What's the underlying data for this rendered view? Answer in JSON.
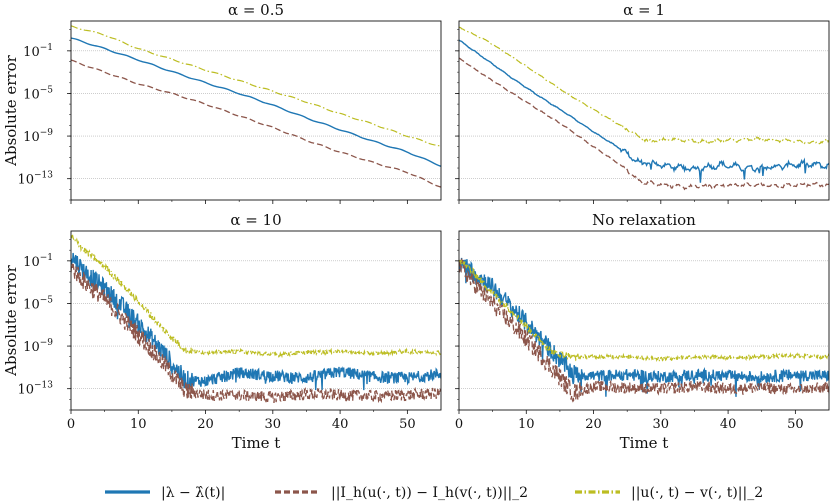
{
  "chart_data": [
    {
      "type": "line",
      "title": "α = 0.5",
      "xlabel": "",
      "ylabel": "Absolute error",
      "xlim": [
        0,
        55
      ],
      "ylim_log10": [
        -15,
        1.8
      ],
      "yscale": "log",
      "grid": "horizontal",
      "series": [
        {
          "name": "|λ − λ̂(t)|",
          "color": "#1f77b4",
          "style": "solid",
          "x": [
            0,
            5,
            10,
            15,
            20,
            25,
            30,
            35,
            40,
            45,
            50,
            55
          ],
          "log10_y": [
            0.2,
            -0.8,
            -1.85,
            -2.95,
            -4.0,
            -5.0,
            -6.1,
            -7.3,
            -8.4,
            -9.5,
            -10.5,
            -11.8
          ]
        },
        {
          "name": "||I_h(u(·,t)) − I_h(v(·,t))||_2",
          "color": "#8c564b",
          "style": "dashed",
          "x": [
            0,
            5,
            10,
            15,
            20,
            25,
            30,
            35,
            40,
            45,
            50,
            55
          ],
          "log10_y": [
            -1.9,
            -3.0,
            -4.1,
            -5.0,
            -6.0,
            -7.1,
            -8.2,
            -9.4,
            -10.5,
            -11.5,
            -12.4,
            -13.8
          ]
        },
        {
          "name": "||u(·,t) − v(·,t)||_2",
          "color": "#bcbd22",
          "style": "dashdot",
          "x": [
            0,
            5,
            10,
            15,
            20,
            25,
            30,
            35,
            40,
            45,
            50,
            55
          ],
          "log10_y": [
            1.3,
            0.5,
            -0.8,
            -1.8,
            -2.8,
            -3.8,
            -4.8,
            -5.8,
            -6.9,
            -7.9,
            -9.0,
            -10.0
          ]
        }
      ]
    },
    {
      "type": "line",
      "title": "α = 1",
      "xlabel": "",
      "ylabel": "",
      "xlim": [
        0,
        55
      ],
      "ylim_log10": [
        -15,
        1.8
      ],
      "yscale": "log",
      "grid": "horizontal",
      "series": [
        {
          "name": "|λ − λ̂(t)|",
          "color": "#1f77b4",
          "style": "solid",
          "x": [
            0,
            4,
            8,
            12,
            16,
            20,
            24,
            27,
            28,
            31,
            35,
            39,
            43,
            47,
            51,
            55
          ],
          "log10_y": [
            0.0,
            -1.8,
            -3.6,
            -5.3,
            -6.9,
            -8.6,
            -10.2,
            -11.6,
            -11.5,
            -11.8,
            -12.1,
            -11.7,
            -12.0,
            -11.9,
            -11.6,
            -11.8
          ]
        },
        {
          "name": "||I_h(u(·,t)) − I_h(v(·,t))||_2",
          "color": "#8c564b",
          "style": "dashed",
          "x": [
            0,
            4,
            8,
            12,
            16,
            20,
            24,
            27,
            30,
            33,
            36,
            40,
            44,
            48,
            52,
            55
          ],
          "log10_y": [
            -1.7,
            -3.4,
            -5.0,
            -6.6,
            -8.2,
            -10.0,
            -11.7,
            -13.3,
            -13.5,
            -13.8,
            -13.7,
            -13.6,
            -13.6,
            -13.7,
            -13.5,
            -13.6
          ]
        },
        {
          "name": "||u(·,t) − v(·,t)||_2",
          "color": "#bcbd22",
          "style": "dashdot",
          "x": [
            0,
            4,
            8,
            12,
            16,
            20,
            24,
            28,
            32,
            36,
            40,
            44,
            48,
            52,
            55
          ],
          "log10_y": [
            1.2,
            0.0,
            -1.6,
            -3.3,
            -5.0,
            -6.5,
            -8.0,
            -9.5,
            -9.3,
            -9.5,
            -9.4,
            -9.3,
            -9.4,
            -9.6,
            -9.5
          ]
        }
      ]
    },
    {
      "type": "line",
      "title": "α = 10",
      "xlabel": "Time t",
      "ylabel": "Absolute error",
      "xlim": [
        0,
        55
      ],
      "ylim_log10": [
        -15,
        1.8
      ],
      "yscale": "log",
      "grid": "horizontal",
      "series": [
        {
          "name": "|λ − λ̂(t)|",
          "color": "#1f77b4",
          "style": "solid",
          "x": [
            0,
            2,
            5,
            8,
            11,
            14,
            17,
            20,
            25,
            30,
            35,
            40,
            45,
            50,
            55
          ],
          "log10_y": [
            -0.5,
            -2.0,
            -3.6,
            -5.5,
            -7.6,
            -9.8,
            -12.2,
            -12.3,
            -11.5,
            -11.8,
            -12.0,
            -11.4,
            -11.9,
            -12.0,
            -11.6
          ]
        },
        {
          "name": "||I_h(u(·,t)) − I_h(v(·,t))||_2",
          "color": "#8c564b",
          "style": "dashed",
          "x": [
            0,
            2,
            5,
            8,
            11,
            14,
            17,
            20,
            25,
            30,
            35,
            40,
            45,
            50,
            55
          ],
          "log10_y": [
            -1.5,
            -3.0,
            -4.6,
            -6.6,
            -8.6,
            -10.8,
            -13.2,
            -13.6,
            -13.6,
            -13.8,
            -13.5,
            -13.6,
            -13.7,
            -13.6,
            -13.4
          ]
        },
        {
          "name": "||u(·,t) − v(·,t)||_2",
          "color": "#bcbd22",
          "style": "dashdot",
          "x": [
            0,
            2,
            5,
            8,
            11,
            14,
            17,
            20,
            25,
            30,
            35,
            40,
            45,
            50,
            55
          ],
          "log10_y": [
            1.3,
            0.0,
            -1.5,
            -3.5,
            -5.5,
            -7.6,
            -9.4,
            -9.6,
            -9.5,
            -9.8,
            -9.6,
            -9.5,
            -9.7,
            -9.5,
            -9.6
          ]
        }
      ]
    },
    {
      "type": "line",
      "title": "No relaxation",
      "xlabel": "Time t",
      "ylabel": "",
      "xlim": [
        0,
        55
      ],
      "ylim_log10": [
        -15,
        1.8
      ],
      "yscale": "log",
      "grid": "horizontal",
      "series": [
        {
          "name": "|λ − λ̂(t)|",
          "color": "#1f77b4",
          "style": "solid",
          "x": [
            0,
            2,
            5,
            8,
            11,
            14,
            17,
            20,
            25,
            30,
            35,
            40,
            45,
            50,
            55
          ],
          "log10_y": [
            -1.0,
            -2.0,
            -3.5,
            -5.5,
            -7.5,
            -9.6,
            -11.6,
            -11.8,
            -11.7,
            -11.9,
            -11.7,
            -11.8,
            -11.9,
            -11.7,
            -11.8
          ]
        },
        {
          "name": "||I_h(u(·,t)) − I_h(v(·,t))||_2",
          "color": "#8c564b",
          "style": "dashed",
          "x": [
            0,
            2,
            5,
            8,
            11,
            14,
            17,
            20,
            25,
            30,
            35,
            40,
            45,
            50,
            55
          ],
          "log10_y": [
            -1.3,
            -3.0,
            -5.0,
            -7.0,
            -9.0,
            -11.2,
            -13.4,
            -12.8,
            -12.9,
            -13.0,
            -12.8,
            -13.0,
            -12.9,
            -13.1,
            -12.9
          ]
        },
        {
          "name": "||u(·,t) − v(·,t)||_2",
          "color": "#bcbd22",
          "style": "dashdot",
          "x": [
            0,
            2,
            5,
            8,
            11,
            14,
            17,
            20,
            25,
            30,
            35,
            40,
            45,
            50,
            55
          ],
          "log10_y": [
            -0.8,
            -2.0,
            -4.0,
            -5.8,
            -7.8,
            -9.6,
            -10.0,
            -10.0,
            -10.0,
            -10.2,
            -10.0,
            -10.1,
            -10.0,
            -9.9,
            -10.0
          ]
        }
      ]
    }
  ],
  "axes": {
    "x_ticks": [
      "0",
      "10",
      "20",
      "30",
      "40",
      "50"
    ],
    "x_tick_values": [
      0,
      10,
      20,
      30,
      40,
      50
    ],
    "y_ticks": [
      "10",
      "10",
      "10",
      "10"
    ],
    "y_tick_exps": [
      "−1",
      "−5",
      "−9",
      "−13"
    ],
    "y_tick_log10": [
      -1,
      -5,
      -9,
      -13
    ]
  },
  "legend": {
    "placement": "bottom-center",
    "items": [
      {
        "label": "|λ − λ̂(t)|",
        "color": "#1f77b4",
        "style": "solid"
      },
      {
        "label": "||I_h(u(·, t)) − I_h(v(·, t))||_2",
        "color": "#8c564b",
        "style": "dashed"
      },
      {
        "label": "||u(·, t) − v(·, t)||_2",
        "color": "#bcbd22",
        "style": "dashdot"
      }
    ]
  }
}
